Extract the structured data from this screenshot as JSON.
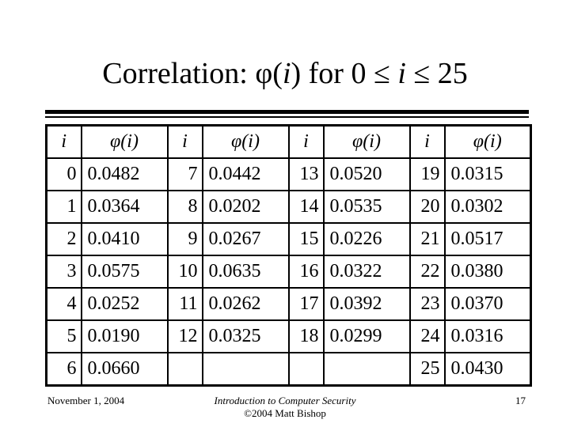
{
  "slide": {
    "title": {
      "pre": "Correlation: φ(",
      "i1": "i",
      "mid": ") for 0 ≤ ",
      "i2": "i",
      "post": " ≤ 25"
    },
    "table": {
      "header": {
        "i": "i",
        "phi": "φ(i)"
      },
      "rows": [
        [
          "0",
          "0.0482",
          "7",
          "0.0442",
          "13",
          "0.0520",
          "19",
          "0.0315"
        ],
        [
          "1",
          "0.0364",
          "8",
          "0.0202",
          "14",
          "0.0535",
          "20",
          "0.0302"
        ],
        [
          "2",
          "0.0410",
          "9",
          "0.0267",
          "15",
          "0.0226",
          "21",
          "0.0517"
        ],
        [
          "3",
          "0.0575",
          "10",
          "0.0635",
          "16",
          "0.0322",
          "22",
          "0.0380"
        ],
        [
          "4",
          "0.0252",
          "11",
          "0.0262",
          "17",
          "0.0392",
          "23",
          "0.0370"
        ],
        [
          "5",
          "0.0190",
          "12",
          "0.0325",
          "18",
          "0.0299",
          "24",
          "0.0316"
        ],
        [
          "6",
          "0.0660",
          "",
          "",
          "",
          "",
          "25",
          "0.0430"
        ]
      ]
    },
    "footer": {
      "date": "November 1, 2004",
      "course": "Introduction to Computer Security",
      "copyright": "©2004 Matt Bishop",
      "page": "17"
    },
    "colors": {
      "background": "#ffffff",
      "text": "#000000",
      "border": "#000000"
    }
  }
}
